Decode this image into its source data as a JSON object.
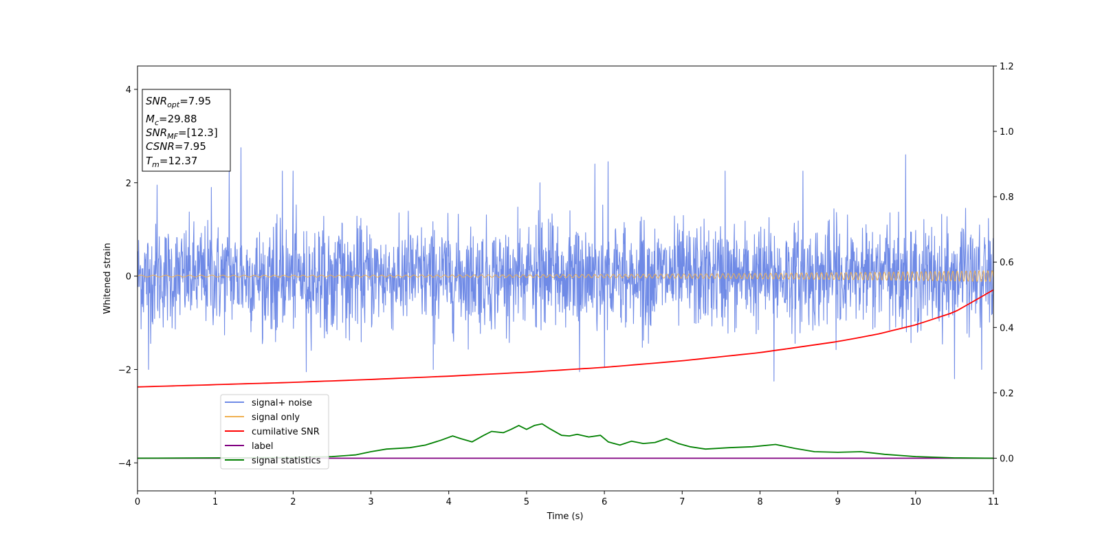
{
  "chart_data": {
    "type": "line",
    "xlabel": "Time (s)",
    "ylabel": "Whitened strain",
    "xlim": [
      0,
      11
    ],
    "ylim": [
      -4.6,
      4.5
    ],
    "y2lim": [
      -0.1,
      1.2
    ],
    "xticks": [
      0,
      1,
      2,
      3,
      4,
      5,
      6,
      7,
      8,
      9,
      10,
      11
    ],
    "yticks": [
      -4,
      -2,
      0,
      2,
      4
    ],
    "y2ticks": [
      0.0,
      0.2,
      0.4,
      0.6,
      0.8,
      1.0,
      1.2
    ],
    "y2tick_labels": [
      "0.0",
      "0.2",
      "0.4",
      "0.6",
      "0.8",
      "1.0",
      "1.2"
    ],
    "grid": false,
    "legend_position": "lower-left",
    "info_box": {
      "snr_opt": {
        "base": "SNR",
        "sub": "opt",
        "value": "=7.95"
      },
      "mc": {
        "base": "M",
        "sub": "c",
        "value": "=29.88"
      },
      "snr_mf": {
        "base": "SNR",
        "sub": "MF",
        "value": "=[12.3]"
      },
      "csnr": {
        "base": "CSNR",
        "value": "=7.95"
      },
      "tm": {
        "base": "T",
        "sub": "m",
        "value": "=12.37"
      }
    },
    "series": [
      {
        "name": "signal+ noise",
        "axis": "left",
        "color": "#6f8ae6",
        "kind": "noise",
        "envelope_typical": 1.2,
        "peaks": [
          {
            "x": 0.25,
            "y": 1.95
          },
          {
            "x": 0.95,
            "y": 1.9
          },
          {
            "x": 1.18,
            "y": 2.45
          },
          {
            "x": 1.33,
            "y": 2.75
          },
          {
            "x": 1.86,
            "y": 2.25
          },
          {
            "x": 2.0,
            "y": 2.25
          },
          {
            "x": 5.17,
            "y": 2.0
          },
          {
            "x": 5.88,
            "y": 2.4
          },
          {
            "x": 6.05,
            "y": 2.45
          },
          {
            "x": 7.55,
            "y": 2.25
          },
          {
            "x": 8.55,
            "y": 2.25
          },
          {
            "x": 9.87,
            "y": 2.6
          }
        ],
        "troughs": [
          {
            "x": 0.14,
            "y": -2.0
          },
          {
            "x": 2.17,
            "y": -2.05
          },
          {
            "x": 3.8,
            "y": -2.0
          },
          {
            "x": 5.68,
            "y": -2.05
          },
          {
            "x": 6.0,
            "y": -1.95
          },
          {
            "x": 8.18,
            "y": -2.25
          },
          {
            "x": 10.5,
            "y": -2.2
          },
          {
            "x": 10.85,
            "y": -2.0
          }
        ]
      },
      {
        "name": "signal only",
        "axis": "left",
        "color": "#f0b050",
        "kind": "chirp",
        "amp_start": 0.02,
        "amp_end": 0.12
      },
      {
        "name": "cumilative SNR",
        "axis": "right",
        "color": "#ff0000",
        "x": [
          0,
          1,
          2,
          3,
          4,
          5,
          6,
          7,
          8,
          9,
          9.5,
          10,
          10.5,
          11
        ],
        "y": [
          0.218,
          0.225,
          0.232,
          0.241,
          0.251,
          0.263,
          0.278,
          0.298,
          0.323,
          0.357,
          0.379,
          0.408,
          0.447,
          0.515
        ]
      },
      {
        "name": "label",
        "axis": "right",
        "color": "#800080",
        "x": [
          0,
          11
        ],
        "y": [
          0.0,
          0.0
        ]
      },
      {
        "name": "signal statistics",
        "axis": "right",
        "color": "#008000",
        "x": [
          0,
          1,
          2,
          2.5,
          2.8,
          3.0,
          3.2,
          3.5,
          3.7,
          3.9,
          4.05,
          4.15,
          4.3,
          4.45,
          4.55,
          4.7,
          4.8,
          4.9,
          5.0,
          5.1,
          5.2,
          5.3,
          5.45,
          5.55,
          5.65,
          5.8,
          5.95,
          6.05,
          6.2,
          6.35,
          6.5,
          6.65,
          6.8,
          6.95,
          7.1,
          7.3,
          7.6,
          7.9,
          8.2,
          8.45,
          8.7,
          9.0,
          9.3,
          9.6,
          10.0,
          10.5,
          11.0
        ],
        "y": [
          0.0,
          0.001,
          0.002,
          0.005,
          0.01,
          0.02,
          0.028,
          0.032,
          0.04,
          0.055,
          0.068,
          0.06,
          0.05,
          0.07,
          0.082,
          0.078,
          0.088,
          0.1,
          0.088,
          0.1,
          0.105,
          0.09,
          0.07,
          0.068,
          0.073,
          0.065,
          0.07,
          0.05,
          0.04,
          0.052,
          0.045,
          0.048,
          0.06,
          0.045,
          0.035,
          0.028,
          0.032,
          0.035,
          0.042,
          0.03,
          0.02,
          0.018,
          0.02,
          0.012,
          0.005,
          0.001,
          0.0
        ]
      }
    ]
  }
}
